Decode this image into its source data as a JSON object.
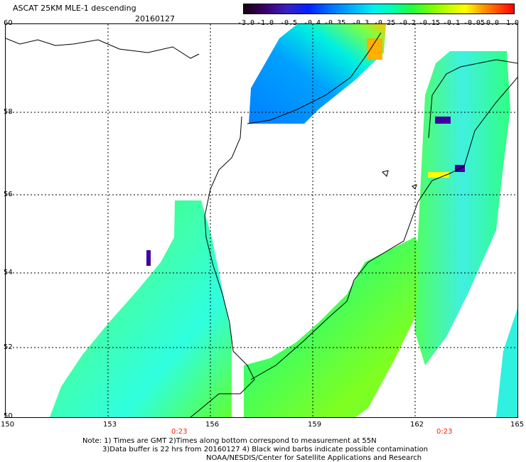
{
  "title": "ASCAT 25KM MLE-1 descending",
  "date": "20160127",
  "colorbar": {
    "labels": [
      "-3.0",
      "-1.0",
      "-0.5",
      "-0.4",
      "-0.35",
      "-0.3",
      "-0.25",
      "-0.2",
      "-0.15",
      "-0.1",
      "-0.05",
      "0.0",
      "1.0"
    ]
  },
  "map": {
    "lat_labels": [
      "60",
      "58",
      "56",
      "54",
      "52",
      "50"
    ],
    "lon_labels": [
      "150",
      "153",
      "156",
      "159",
      "162",
      "165"
    ],
    "times": [
      "0:23",
      "0:23"
    ]
  },
  "notes": [
    "Note: 1) Times are GMT 2)Times along bottom correspond to measurement at 55N",
    "3)Data buffer is 22 hrs from 20160127 4) Black wind barbs indicate possible contamination",
    "NOAA/NESDIS/Center for Satellite Applications and Research"
  ]
}
